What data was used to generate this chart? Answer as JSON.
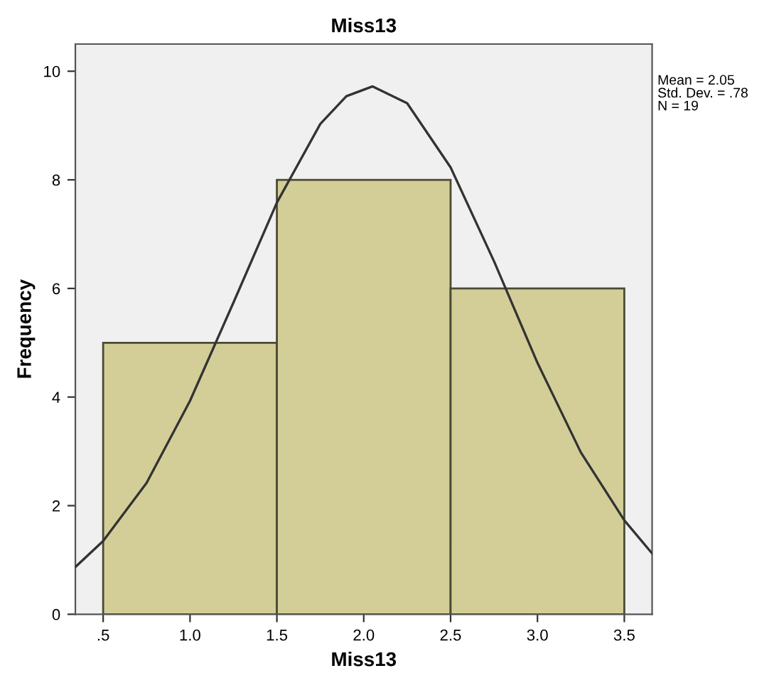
{
  "chart_data": {
    "type": "histogram",
    "title": "Miss13",
    "xlabel": "Miss13",
    "ylabel": "Frequency",
    "bins": [
      0.5,
      1.5,
      2.5,
      3.5
    ],
    "values": [
      5,
      8,
      6
    ],
    "color": "#d3ce97",
    "series": [
      {
        "type": "line",
        "color": "#333333",
        "x": [
          0.34,
          0.5,
          0.75,
          1.0,
          1.25,
          1.5,
          1.75,
          1.9,
          2.05,
          2.25,
          2.5,
          2.75,
          3.0,
          3.25,
          3.5,
          3.66
        ],
        "values": [
          0.87,
          1.35,
          2.42,
          3.93,
          5.74,
          7.58,
          9.03,
          9.54,
          9.72,
          9.41,
          8.23,
          6.5,
          4.63,
          2.98,
          1.73,
          1.12
        ]
      }
    ],
    "xlim": [
      0.34,
      3.66
    ],
    "ylim": [
      0,
      10.5
    ],
    "xticks": [
      {
        "value": 0.5,
        "label": ".5"
      },
      {
        "value": 1.0,
        "label": "1.0"
      },
      {
        "value": 1.5,
        "label": "1.5"
      },
      {
        "value": 2.0,
        "label": "2.0"
      },
      {
        "value": 2.5,
        "label": "2.5"
      },
      {
        "value": 3.0,
        "label": "3.0"
      },
      {
        "value": 3.5,
        "label": "3.5"
      }
    ],
    "yticks": [
      0,
      2,
      4,
      6,
      8,
      10
    ],
    "annotations": [
      "Mean = 2.05\nStd. Dev. = .78\nN = 19"
    ]
  }
}
